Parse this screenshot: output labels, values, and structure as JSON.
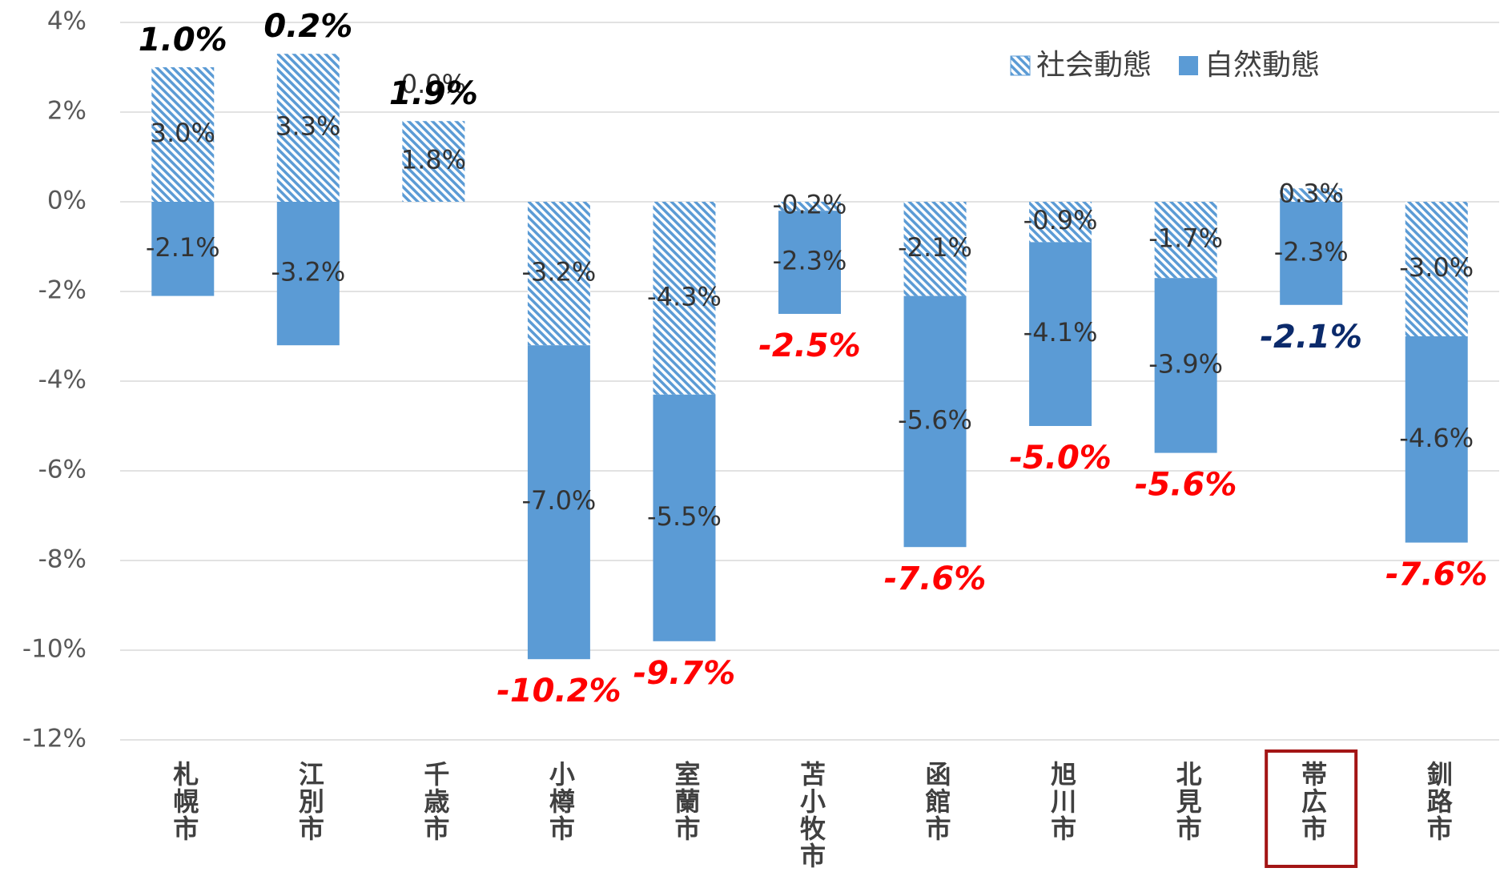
{
  "chart_data": {
    "type": "stacked_bar",
    "categories": [
      "札幌市",
      "江別市",
      "千歳市",
      "小樽市",
      "室蘭市",
      "苫小牧市",
      "函館市",
      "旭川市",
      "北見市",
      "帯広市",
      "釧路市"
    ],
    "series": [
      {
        "name": "社会動態",
        "color": "#5b9bd5",
        "pattern": "hatch",
        "values": [
          3.0,
          3.3,
          1.8,
          -3.2,
          -4.3,
          -0.2,
          -2.1,
          -0.9,
          -1.7,
          0.3,
          -3.0
        ],
        "value_labels": [
          "3.0%",
          "3.3%",
          "1.8%",
          "-3.2%",
          "-4.3%",
          "-0.2%",
          "-2.1%",
          "-0.9%",
          "-1.7%",
          "0.3%",
          "-3.0%"
        ]
      },
      {
        "name": "自然動態",
        "color": "#5b9bd5",
        "pattern": "solid",
        "values": [
          -2.1,
          -3.2,
          0.0,
          -7.0,
          -5.5,
          -2.3,
          -5.6,
          -4.1,
          -3.9,
          -2.3,
          -4.6
        ],
        "value_labels": [
          "-2.1%",
          "-3.2%",
          "0.0%",
          "-7.0%",
          "-5.5%",
          "-2.3%",
          "-5.6%",
          "-4.1%",
          "-3.9%",
          "-2.3%",
          "-4.6%"
        ]
      }
    ],
    "totals": [
      1.0,
      0.2,
      1.9,
      -10.2,
      -9.7,
      -2.5,
      -7.6,
      -5.0,
      -5.6,
      -2.1,
      -7.6
    ],
    "total_labels": [
      "1.0%",
      "0.2%",
      "1.9%",
      "-10.2%",
      "-9.7%",
      "-2.5%",
      "-7.6%",
      "-5.0%",
      "-5.6%",
      "-2.1%",
      "-7.6%"
    ],
    "total_colors": [
      "#000000",
      "#000000",
      "#000000",
      "#ff0000",
      "#ff0000",
      "#ff0000",
      "#ff0000",
      "#ff0000",
      "#ff0000",
      "#0b2a6b",
      "#ff0000"
    ],
    "highlight_category": "帯広市",
    "ylim": [
      -12,
      4
    ],
    "yticks": [
      {
        "value": -12,
        "label": "-12%"
      },
      {
        "value": -10,
        "label": "-10%"
      },
      {
        "value": -8,
        "label": "-8%"
      },
      {
        "value": -6,
        "label": "-6%"
      },
      {
        "value": -4,
        "label": "-4%"
      },
      {
        "value": -2,
        "label": "-2%"
      },
      {
        "value": 0,
        "label": "0%"
      },
      {
        "value": 2,
        "label": "2%"
      },
      {
        "value": 4,
        "label": "4%"
      }
    ],
    "grid": true,
    "legend": "top-right"
  }
}
